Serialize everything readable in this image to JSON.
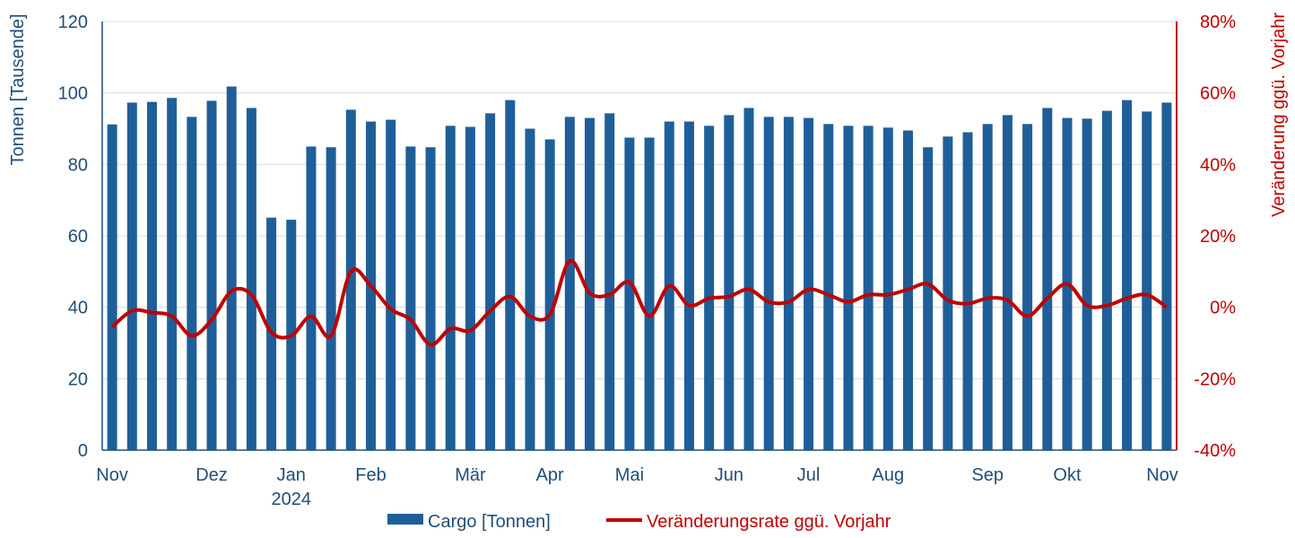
{
  "chart_data": {
    "type": "bar+line",
    "ylabel_left": "Tonnen [Tausende]",
    "ylabel_right": "Veränderung ggü. Vorjahr",
    "ylim_left": [
      0,
      120
    ],
    "ylim_right": [
      -40,
      80
    ],
    "yticks_left": [
      "0",
      "20",
      "40",
      "60",
      "80",
      "100",
      "120"
    ],
    "yticks_right": [
      "-40%",
      "-20%",
      "0%",
      "20%",
      "40%",
      "60%",
      "80%"
    ],
    "x_month_labels": [
      {
        "label": "Nov",
        "index": 0
      },
      {
        "label": "Dez",
        "index": 5
      },
      {
        "label": "Jan",
        "index": 9,
        "sub": "2024"
      },
      {
        "label": "Feb",
        "index": 13
      },
      {
        "label": "Mär",
        "index": 18
      },
      {
        "label": "Apr",
        "index": 22
      },
      {
        "label": "Mai",
        "index": 26
      },
      {
        "label": "Jun",
        "index": 31
      },
      {
        "label": "Jul",
        "index": 35
      },
      {
        "label": "Aug",
        "index": 39
      },
      {
        "label": "Sep",
        "index": 44
      },
      {
        "label": "Okt",
        "index": 48
      },
      {
        "label": "Nov",
        "index": 53
      }
    ],
    "series": [
      {
        "name": "Cargo [Tonnen]",
        "type": "bar",
        "axis": "left",
        "color": "#1f5f99",
        "values": [
          91.2,
          97.3,
          97.5,
          98.6,
          93.3,
          97.8,
          101.8,
          95.8,
          65.1,
          64.5,
          85.0,
          84.8,
          95.3,
          92.0,
          92.5,
          85.0,
          84.8,
          90.8,
          90.5,
          94.3,
          98.0,
          90.0,
          87.0,
          93.3,
          93.0,
          94.3,
          87.5,
          87.5,
          92.0,
          92.0,
          90.8,
          93.8,
          95.8,
          93.3,
          93.3,
          93.0,
          91.3,
          90.8,
          90.8,
          90.3,
          89.5,
          84.8,
          87.8,
          89.0,
          91.3,
          93.8,
          91.3,
          95.8,
          93.0,
          92.8,
          95.0,
          98.0,
          94.8,
          97.3
        ]
      },
      {
        "name": "Veränderungsrate ggü. Vorjahr",
        "type": "line",
        "axis": "right",
        "color": "#c00000",
        "values": [
          -5.5,
          -1.0,
          -1.5,
          -2.5,
          -8.0,
          -3.5,
          4.5,
          3.5,
          -7.0,
          -8.0,
          -2.5,
          -8.0,
          10.0,
          6.0,
          -0.5,
          -3.5,
          -10.5,
          -6.0,
          -6.5,
          -1.0,
          3.0,
          -2.5,
          -2.0,
          13.0,
          4.0,
          3.5,
          7.0,
          -2.5,
          6.0,
          0.5,
          2.5,
          3.0,
          5.0,
          1.5,
          1.5,
          5.0,
          3.5,
          1.5,
          3.5,
          3.5,
          5.0,
          6.5,
          2.0,
          1.0,
          2.5,
          2.0,
          -2.5,
          2.5,
          6.5,
          0.5,
          0.5,
          2.5,
          3.5,
          0.0
        ]
      }
    ],
    "grid": true,
    "legend_position": "bottom-center"
  }
}
